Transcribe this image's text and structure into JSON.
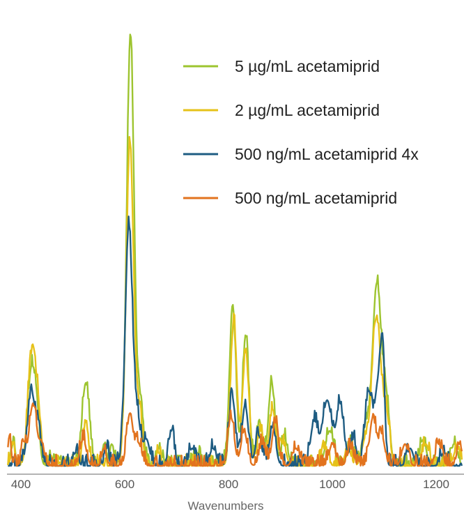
{
  "chart_data": {
    "type": "line",
    "title": "",
    "xlabel": "Wavenumbers",
    "ylabel": "",
    "xlim": [
      375,
      1250
    ],
    "ylim": [
      0,
      1
    ],
    "x_ticks": [
      400,
      600,
      800,
      1000,
      1200
    ],
    "grid": false,
    "legend_position": "top-right",
    "series": [
      {
        "name": "5 µg/mL acetamiprid",
        "color": "#9dc42f",
        "peaks": [
          [
            385,
            0.05,
            4
          ],
          [
            420,
            0.22,
            7
          ],
          [
            431,
            0.1,
            5
          ],
          [
            458,
            0.02,
            4
          ],
          [
            525,
            0.19,
            7
          ],
          [
            560,
            0.05,
            3
          ],
          [
            575,
            0.05,
            4
          ],
          [
            611,
            0.99,
            7
          ],
          [
            630,
            0.13,
            6
          ],
          [
            665,
            0.04,
            5
          ],
          [
            740,
            0.03,
            6
          ],
          [
            808,
            0.37,
            6
          ],
          [
            833,
            0.3,
            6
          ],
          [
            860,
            0.1,
            6
          ],
          [
            883,
            0.19,
            6
          ],
          [
            908,
            0.06,
            6
          ],
          [
            995,
            0.08,
            8
          ],
          [
            1035,
            0.05,
            6
          ],
          [
            1063,
            0.08,
            6
          ],
          [
            1086,
            0.42,
            9
          ],
          [
            1105,
            0.12,
            6
          ],
          [
            1175,
            0.06,
            6
          ],
          [
            1235,
            0.05,
            6
          ]
        ]
      },
      {
        "name": "2 µg/mL acetamiprid",
        "color": "#e6c21a",
        "peaks": [
          [
            385,
            0.04,
            4
          ],
          [
            420,
            0.24,
            7
          ],
          [
            432,
            0.13,
            6
          ],
          [
            525,
            0.1,
            5
          ],
          [
            610,
            0.74,
            7
          ],
          [
            628,
            0.12,
            6
          ],
          [
            665,
            0.03,
            5
          ],
          [
            810,
            0.33,
            6
          ],
          [
            833,
            0.26,
            6
          ],
          [
            862,
            0.08,
            6
          ],
          [
            885,
            0.13,
            6
          ],
          [
            905,
            0.05,
            6
          ],
          [
            985,
            0.04,
            6
          ],
          [
            1030,
            0.04,
            6
          ],
          [
            1062,
            0.05,
            6
          ],
          [
            1085,
            0.34,
            9
          ],
          [
            1105,
            0.1,
            6
          ],
          [
            1180,
            0.05,
            6
          ],
          [
            1240,
            0.04,
            6
          ]
        ]
      },
      {
        "name": "500 ng/mL acetamiprid 4x",
        "color": "#1e5c82",
        "peaks": [
          [
            420,
            0.17,
            7
          ],
          [
            434,
            0.08,
            5
          ],
          [
            505,
            0.03,
            5
          ],
          [
            565,
            0.04,
            4
          ],
          [
            608,
            0.55,
            7
          ],
          [
            625,
            0.1,
            6
          ],
          [
            642,
            0.06,
            6
          ],
          [
            690,
            0.08,
            5
          ],
          [
            730,
            0.04,
            6
          ],
          [
            770,
            0.04,
            6
          ],
          [
            807,
            0.16,
            6
          ],
          [
            832,
            0.14,
            6
          ],
          [
            858,
            0.07,
            6
          ],
          [
            885,
            0.09,
            6
          ],
          [
            965,
            0.1,
            7
          ],
          [
            990,
            0.15,
            9
          ],
          [
            1015,
            0.14,
            7
          ],
          [
            1040,
            0.06,
            6
          ],
          [
            1070,
            0.17,
            7
          ],
          [
            1088,
            0.18,
            6
          ],
          [
            1097,
            0.24,
            4
          ],
          [
            1150,
            0.04,
            6
          ],
          [
            1215,
            0.03,
            6
          ]
        ]
      },
      {
        "name": "500 ng/mL acetamiprid",
        "color": "#e2731e",
        "peaks": [
          [
            378,
            0.07,
            3
          ],
          [
            405,
            0.05,
            4
          ],
          [
            423,
            0.14,
            7
          ],
          [
            440,
            0.05,
            5
          ],
          [
            520,
            0.06,
            6
          ],
          [
            560,
            0.04,
            4
          ],
          [
            610,
            0.12,
            6
          ],
          [
            627,
            0.05,
            6
          ],
          [
            805,
            0.11,
            6
          ],
          [
            830,
            0.08,
            6
          ],
          [
            865,
            0.05,
            6
          ],
          [
            890,
            0.1,
            6
          ],
          [
            930,
            0.04,
            6
          ],
          [
            1000,
            0.05,
            6
          ],
          [
            1035,
            0.04,
            6
          ],
          [
            1078,
            0.11,
            6
          ],
          [
            1095,
            0.07,
            6
          ],
          [
            1140,
            0.05,
            6
          ],
          [
            1205,
            0.05,
            6
          ],
          [
            1245,
            0.05,
            5
          ]
        ]
      }
    ]
  }
}
